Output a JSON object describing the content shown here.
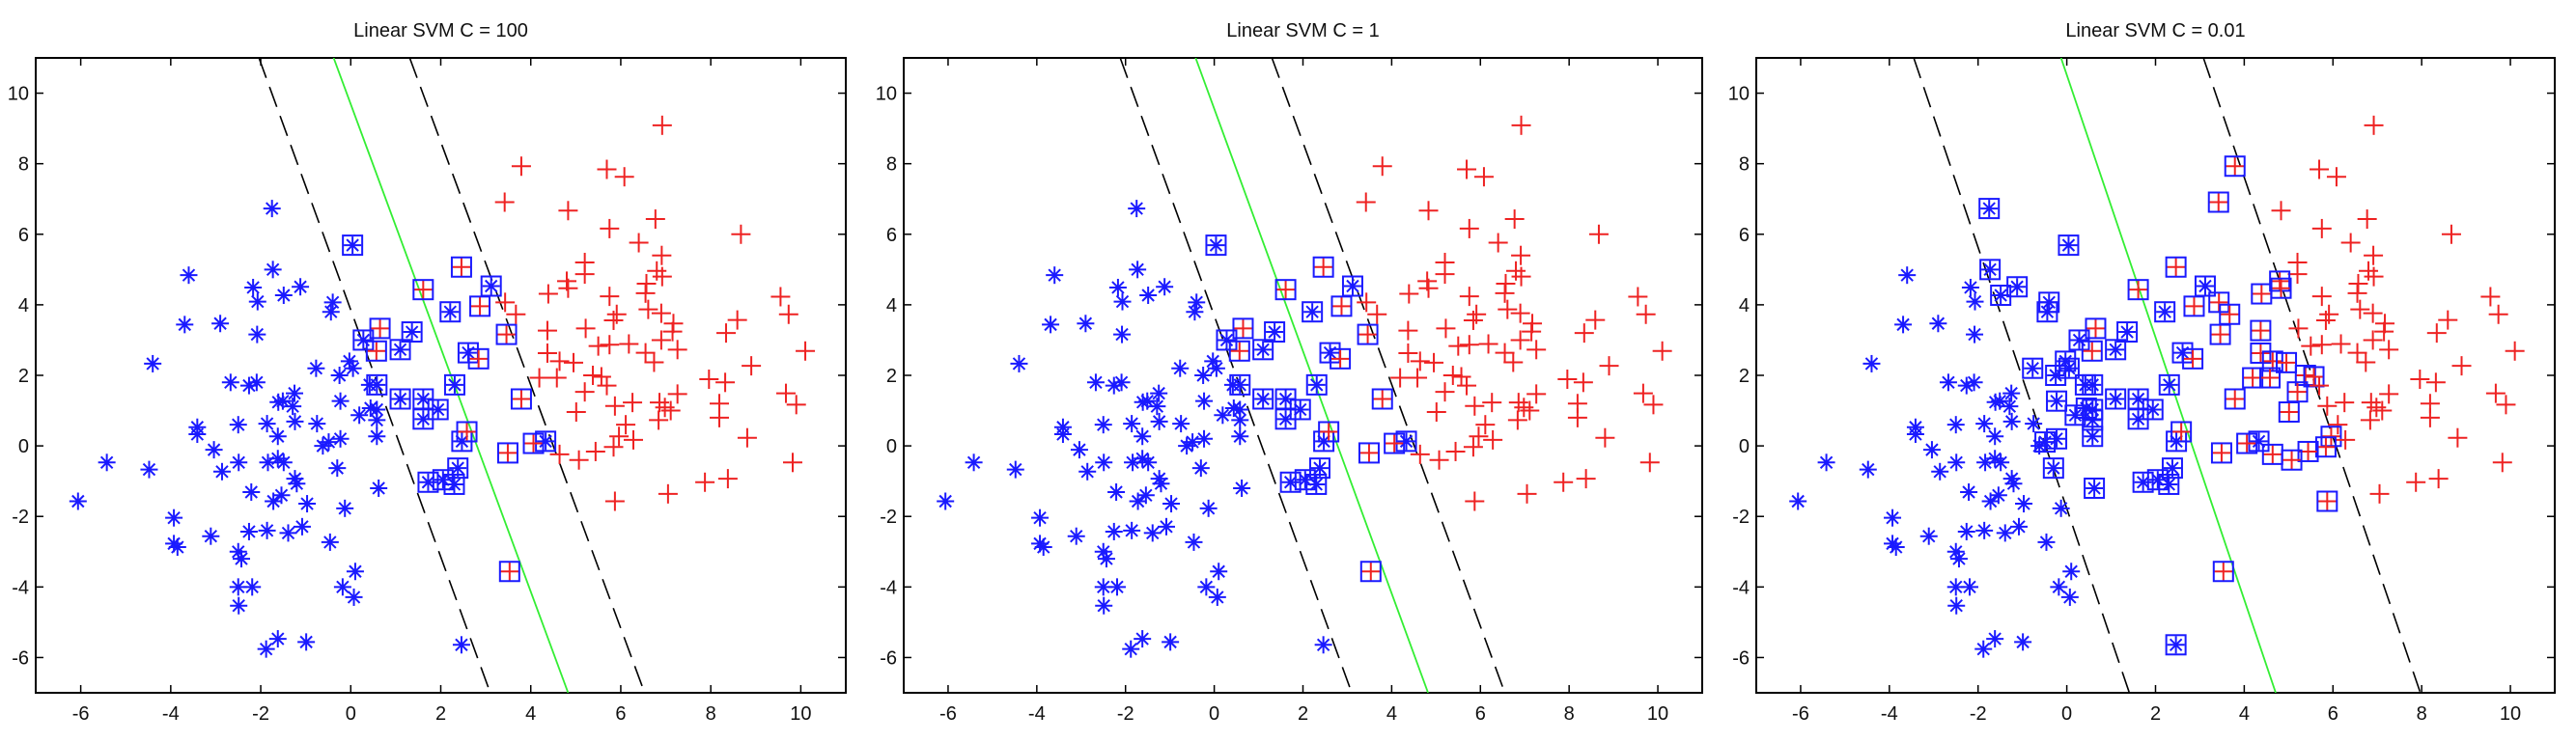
{
  "chart_data": [
    {
      "type": "scatter",
      "title": "Linear SVM  C = 100",
      "xlim": [
        -7,
        11
      ],
      "ylim": [
        -7,
        11
      ],
      "xticks": [
        -6,
        -4,
        -2,
        0,
        2,
        4,
        6,
        8,
        10
      ],
      "yticks": [
        -6,
        -4,
        -2,
        0,
        2,
        4,
        6,
        8,
        10
      ],
      "decision_boundary": {
        "x_at_y_top": -0.38,
        "x_at_y_bottom": 4.83
      },
      "margin_left": {
        "x_at_y_top": -2.04,
        "x_at_y_bottom": 3.1
      },
      "margin_right": {
        "x_at_y_top": 1.31,
        "x_at_y_bottom": 6.53
      }
    },
    {
      "type": "scatter",
      "title": "Linear SVM  C = 1",
      "xlim": [
        -7,
        11
      ],
      "ylim": [
        -7,
        11
      ],
      "xticks": [
        -6,
        -4,
        -2,
        0,
        2,
        4,
        6,
        8,
        10
      ],
      "yticks": [
        -6,
        -4,
        -2,
        0,
        2,
        4,
        6,
        8,
        10
      ],
      "decision_boundary": {
        "x_at_y_top": -0.42,
        "x_at_y_bottom": 4.82
      },
      "margin_left": {
        "x_at_y_top": -2.12,
        "x_at_y_bottom": 3.1
      },
      "margin_right": {
        "x_at_y_top": 1.3,
        "x_at_y_bottom": 6.55
      }
    },
    {
      "type": "scatter",
      "title": "Linear SVM  C = 0.01",
      "xlim": [
        -7,
        11
      ],
      "ylim": [
        -7,
        11
      ],
      "xticks": [
        -6,
        -4,
        -2,
        0,
        2,
        4,
        6,
        8,
        10
      ],
      "yticks": [
        -6,
        -4,
        -2,
        0,
        2,
        4,
        6,
        8,
        10
      ],
      "decision_boundary": {
        "x_at_y_top": -0.13,
        "x_at_y_bottom": 4.71
      },
      "margin_left": {
        "x_at_y_top": -3.45,
        "x_at_y_bottom": 1.41
      },
      "margin_right": {
        "x_at_y_top": 3.08,
        "x_at_y_bottom": 7.97
      }
    }
  ],
  "colors": {
    "class_neg": "#1a1aff",
    "class_pos": "#ee2222",
    "boundary": "#33ee33",
    "margin": "#000000",
    "support_box": "#1a1aff"
  },
  "class_neg_points": [
    [
      -6.06,
      -1.57
    ],
    [
      -5.42,
      -0.47
    ],
    [
      -4.48,
      -0.67
    ],
    [
      -4.4,
      2.33
    ],
    [
      -3.6,
      4.84
    ],
    [
      -3.69,
      3.44
    ],
    [
      -2.9,
      3.47
    ],
    [
      -3.41,
      0.53
    ],
    [
      -3.41,
      0.33
    ],
    [
      -3.04,
      -0.11
    ],
    [
      -2.86,
      -0.73
    ],
    [
      -3.93,
      -2.04
    ],
    [
      -3.93,
      -2.77
    ],
    [
      -3.85,
      -2.87
    ],
    [
      -3.11,
      -2.56
    ],
    [
      -2.67,
      1.8
    ],
    [
      -2.5,
      0.6
    ],
    [
      -2.49,
      -0.47
    ],
    [
      -2.5,
      -3.0
    ],
    [
      -2.43,
      -3.2
    ],
    [
      -2.5,
      -4.0
    ],
    [
      -2.49,
      -4.53
    ],
    [
      -2.19,
      -4.0
    ],
    [
      -2.21,
      -1.31
    ],
    [
      -2.26,
      -2.43
    ],
    [
      -2.17,
      4.49
    ],
    [
      -2.07,
      4.09
    ],
    [
      -2.08,
      3.16
    ],
    [
      -2.26,
      1.71
    ],
    [
      -2.09,
      1.8
    ],
    [
      -1.75,
      6.73
    ],
    [
      -1.73,
      5.0
    ],
    [
      -1.49,
      4.27
    ],
    [
      -1.12,
      4.51
    ],
    [
      -1.86,
      0.63
    ],
    [
      -1.84,
      -0.47
    ],
    [
      -1.62,
      0.27
    ],
    [
      -1.61,
      1.24
    ],
    [
      -1.51,
      1.27
    ],
    [
      -1.25,
      1.49
    ],
    [
      -1.29,
      1.12
    ],
    [
      -1.24,
      0.69
    ],
    [
      -1.62,
      -0.36
    ],
    [
      -1.49,
      -0.47
    ],
    [
      -1.24,
      -0.93
    ],
    [
      -1.2,
      -1.07
    ],
    [
      -1.72,
      -1.57
    ],
    [
      -1.54,
      -1.4
    ],
    [
      -1.86,
      -2.4
    ],
    [
      -1.39,
      -2.47
    ],
    [
      -1.08,
      -2.29
    ],
    [
      -0.97,
      -1.64
    ],
    [
      -0.77,
      2.2
    ],
    [
      -0.75,
      0.63
    ],
    [
      -0.62,
      0.0
    ],
    [
      -0.49,
      0.11
    ],
    [
      -0.4,
      4.07
    ],
    [
      -0.44,
      3.8
    ],
    [
      -0.25,
      2.0
    ],
    [
      -0.23,
      1.27
    ],
    [
      -0.03,
      2.4
    ],
    [
      0.05,
      2.2
    ],
    [
      -0.23,
      0.2
    ],
    [
      -0.3,
      -0.63
    ],
    [
      -0.13,
      -1.77
    ],
    [
      -0.46,
      -2.73
    ],
    [
      -0.18,
      -4.0
    ],
    [
      0.07,
      -4.29
    ],
    [
      0.1,
      -3.56
    ],
    [
      -1.62,
      -5.47
    ],
    [
      -1.88,
      -5.76
    ],
    [
      -0.99,
      -5.56
    ],
    [
      0.19,
      0.87
    ],
    [
      0.42,
      1.73
    ],
    [
      0.58,
      1.73
    ],
    [
      0.44,
      1.07
    ],
    [
      0.58,
      1.03
    ],
    [
      0.58,
      0.73
    ],
    [
      0.58,
      0.27
    ],
    [
      0.62,
      -1.2
    ],
    [
      2.46,
      -5.64
    ],
    [
      0.04,
      5.69
    ],
    [
      0.28,
      3.0
    ],
    [
      1.1,
      2.73
    ],
    [
      1.36,
      3.23
    ],
    [
      1.1,
      1.33
    ],
    [
      1.61,
      1.33
    ],
    [
      1.61,
      0.76
    ],
    [
      1.94,
      1.03
    ],
    [
      2.21,
      3.8
    ],
    [
      2.61,
      2.64
    ],
    [
      2.31,
      1.73
    ],
    [
      2.47,
      0.13
    ],
    [
      1.72,
      -1.03
    ],
    [
      2.05,
      -0.96
    ],
    [
      2.3,
      -1.09
    ],
    [
      2.38,
      -0.63
    ],
    [
      3.12,
      4.53
    ],
    [
      4.33,
      0.13
    ]
  ],
  "class_pos_points": [
    [
      0.65,
      3.33
    ],
    [
      0.57,
      2.69
    ],
    [
      1.61,
      4.43
    ],
    [
      2.46,
      5.07
    ],
    [
      2.87,
      3.96
    ],
    [
      2.84,
      2.47
    ],
    [
      3.46,
      3.16
    ],
    [
      2.58,
      0.4
    ],
    [
      3.79,
      1.33
    ],
    [
      3.49,
      -0.2
    ],
    [
      4.06,
      0.07
    ],
    [
      3.53,
      -3.56
    ],
    [
      6.92,
      9.09
    ],
    [
      3.79,
      7.93
    ],
    [
      5.69,
      7.84
    ],
    [
      6.08,
      7.63
    ],
    [
      3.42,
      6.91
    ],
    [
      4.83,
      6.67
    ],
    [
      6.77,
      6.43
    ],
    [
      5.75,
      6.16
    ],
    [
      8.67,
      6.0
    ],
    [
      6.4,
      5.76
    ],
    [
      6.91,
      5.4
    ],
    [
      5.2,
      5.2
    ],
    [
      5.2,
      4.87
    ],
    [
      6.8,
      4.96
    ],
    [
      6.92,
      4.8
    ],
    [
      4.8,
      4.67
    ],
    [
      4.83,
      4.47
    ],
    [
      6.57,
      4.6
    ],
    [
      6.55,
      4.33
    ],
    [
      4.39,
      4.31
    ],
    [
      5.75,
      4.24
    ],
    [
      9.55,
      4.23
    ],
    [
      3.43,
      4.07
    ],
    [
      3.67,
      3.73
    ],
    [
      6.61,
      3.87
    ],
    [
      6.9,
      3.76
    ],
    [
      9.73,
      3.73
    ],
    [
      5.91,
      3.73
    ],
    [
      5.84,
      3.56
    ],
    [
      8.59,
      3.57
    ],
    [
      7.17,
      3.47
    ],
    [
      4.37,
      3.27
    ],
    [
      5.22,
      3.33
    ],
    [
      8.34,
      3.2
    ],
    [
      7.15,
      3.24
    ],
    [
      6.9,
      3.0
    ],
    [
      5.5,
      2.83
    ],
    [
      5.75,
      2.87
    ],
    [
      6.18,
      2.89
    ],
    [
      7.26,
      2.73
    ],
    [
      6.55,
      2.64
    ],
    [
      10.1,
      2.69
    ],
    [
      4.37,
      2.63
    ],
    [
      4.64,
      2.4
    ],
    [
      6.74,
      2.37
    ],
    [
      4.95,
      2.36
    ],
    [
      8.9,
      2.27
    ],
    [
      4.19,
      1.93
    ],
    [
      4.58,
      1.93
    ],
    [
      5.38,
      2.0
    ],
    [
      5.57,
      1.96
    ],
    [
      7.96,
      1.89
    ],
    [
      5.69,
      1.71
    ],
    [
      8.32,
      1.8
    ],
    [
      5.2,
      1.53
    ],
    [
      7.26,
      1.47
    ],
    [
      9.67,
      1.49
    ],
    [
      6.26,
      1.23
    ],
    [
      5.87,
      1.13
    ],
    [
      6.86,
      1.23
    ],
    [
      6.98,
      1.09
    ],
    [
      8.19,
      1.2
    ],
    [
      9.9,
      1.17
    ],
    [
      7.11,
      1.0
    ],
    [
      5.01,
      0.96
    ],
    [
      6.84,
      0.73
    ],
    [
      8.19,
      0.8
    ],
    [
      6.11,
      0.6
    ],
    [
      5.96,
      0.27
    ],
    [
      6.28,
      0.17
    ],
    [
      8.81,
      0.23
    ],
    [
      5.84,
      -0.03
    ],
    [
      4.64,
      -0.24
    ],
    [
      5.44,
      -0.16
    ],
    [
      5.07,
      -0.4
    ],
    [
      9.82,
      -0.47
    ],
    [
      8.38,
      -0.93
    ],
    [
      7.87,
      -1.03
    ],
    [
      7.05,
      -1.36
    ],
    [
      5.87,
      -1.57
    ]
  ]
}
